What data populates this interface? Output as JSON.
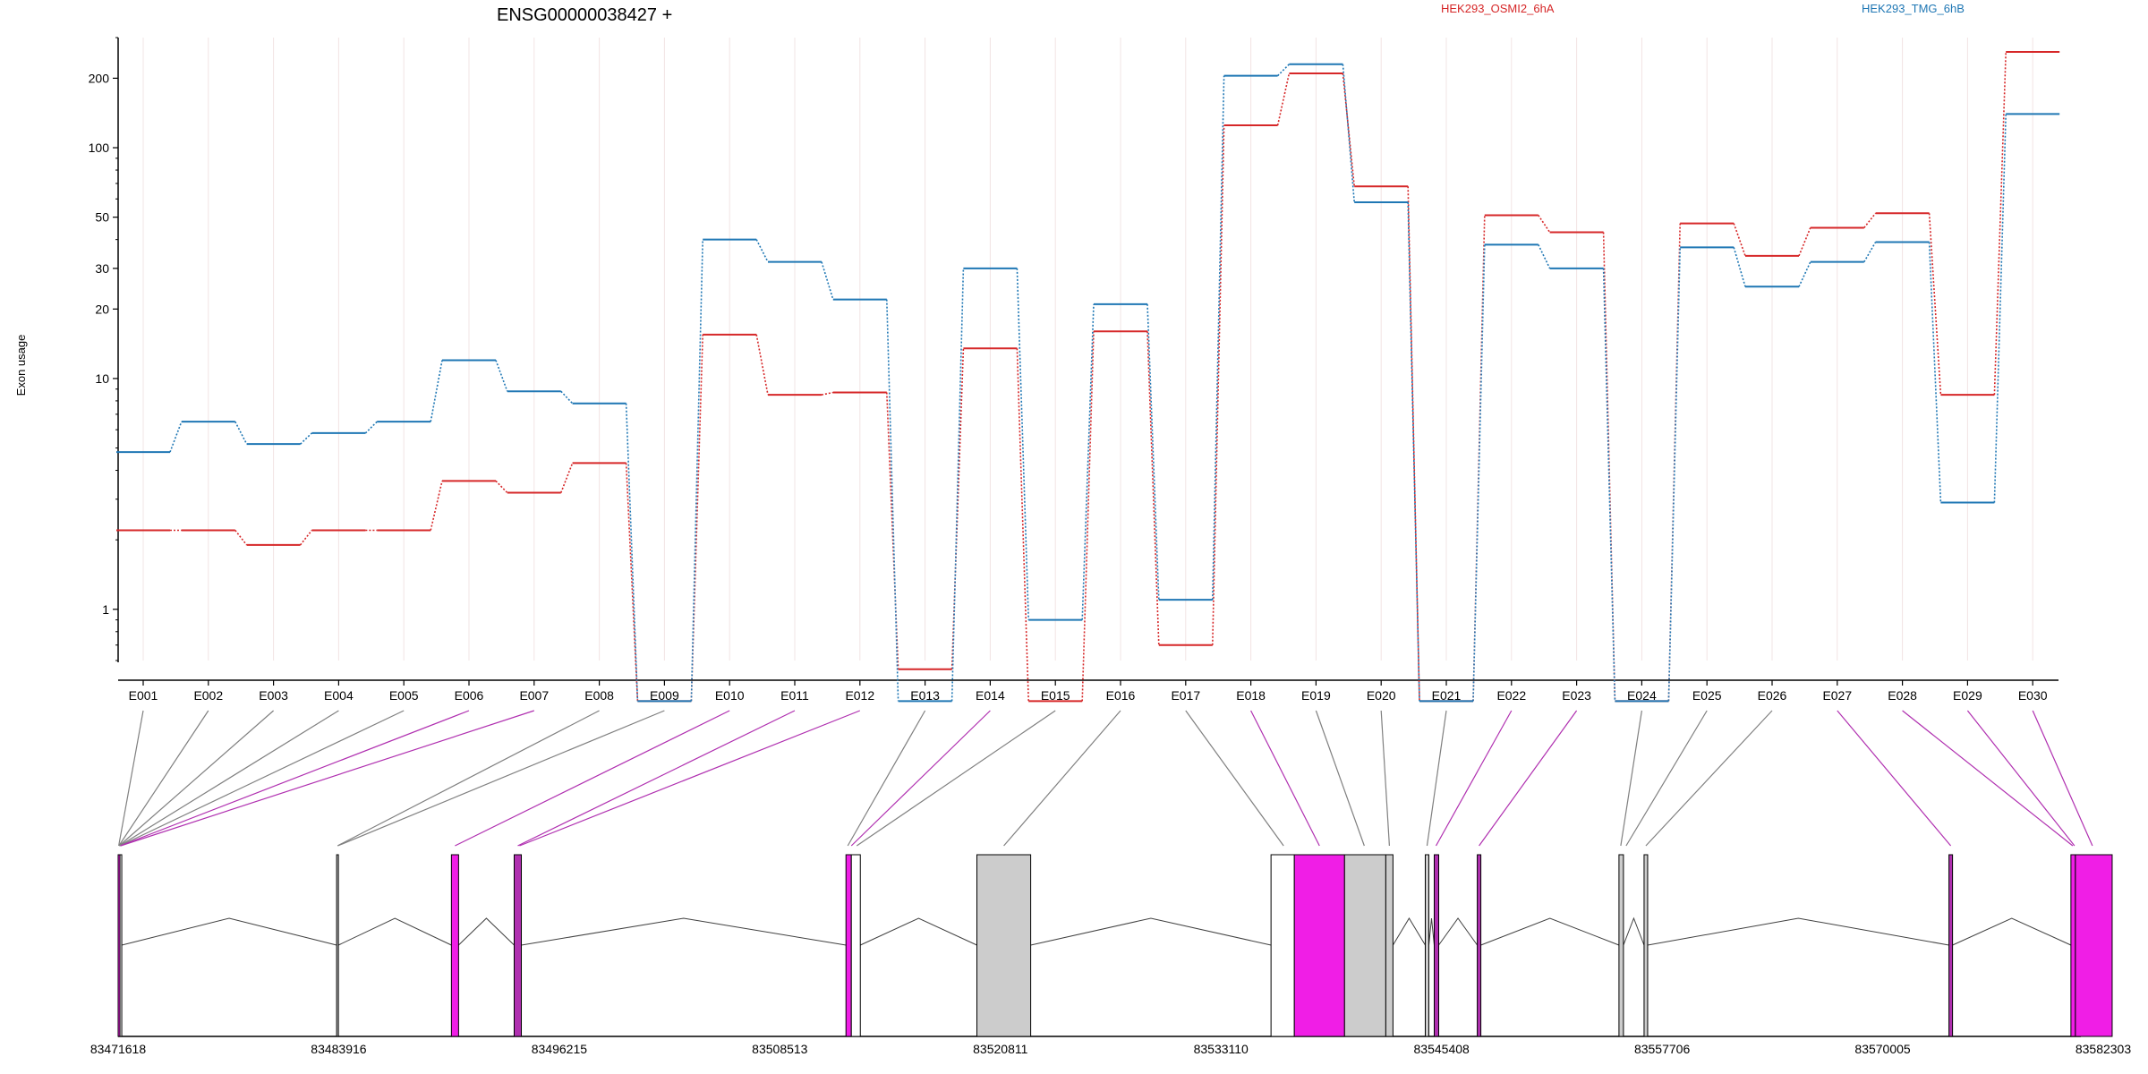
{
  "chart_data": {
    "type": "line",
    "title": "ENSG00000038427 +",
    "ylabel": "Exon usage",
    "xlabel": "",
    "yscale": "log",
    "ylim": [
      0.6,
      300
    ],
    "grid": true,
    "legend_placement": "top",
    "yticks": [
      1,
      10,
      20,
      30,
      50,
      100,
      200
    ],
    "categories": [
      "E001",
      "E002",
      "E003",
      "E004",
      "E005",
      "E006",
      "E007",
      "E008",
      "E009",
      "E010",
      "E011",
      "E012",
      "E013",
      "E014",
      "E015",
      "E016",
      "E017",
      "E018",
      "E019",
      "E020",
      "E021",
      "E022",
      "E023",
      "E024",
      "E025",
      "E026",
      "E027",
      "E028",
      "E029",
      "E030"
    ],
    "series": [
      {
        "name": "HEK293_OSMI2_6hA",
        "color": "#d62728",
        "values": [
          2.2,
          2.2,
          1.9,
          2.2,
          2.2,
          3.6,
          3.2,
          4.3,
          0.4,
          15.5,
          8.5,
          8.7,
          0.55,
          13.5,
          0.4,
          16.0,
          0.7,
          125,
          210,
          68,
          0.4,
          51,
          43,
          0.4,
          47,
          34,
          45,
          52,
          8.5,
          260
        ]
      },
      {
        "name": "HEK293_TMG_6hB",
        "color": "#1f77b4",
        "values": [
          4.8,
          6.5,
          5.2,
          5.8,
          6.5,
          12,
          8.8,
          7.8,
          0.4,
          40,
          32,
          22,
          0.4,
          30,
          0.9,
          21,
          1.1,
          205,
          230,
          58,
          0.4,
          38,
          30,
          0.4,
          37,
          25,
          32,
          39,
          2.9,
          140
        ]
      }
    ],
    "genome": {
      "coords": [
        "83471618",
        "83483916",
        "83496215",
        "83508513",
        "83520811",
        "83533110",
        "83545408",
        "83557706",
        "83570005",
        "83582303"
      ],
      "exon_regions": [
        {
          "start": 83471618,
          "end": 83471700,
          "color": "#f01ee6",
          "stroke": "#000000"
        },
        {
          "start": 83471720,
          "end": 83471800,
          "color": "#ffffff",
          "stroke": "#000000"
        },
        {
          "start": 83483800,
          "end": 83483900,
          "color": "#cccccc",
          "stroke": "#000000"
        },
        {
          "start": 83490200,
          "end": 83490600,
          "color": "#f01ee6",
          "stroke": "#000000"
        },
        {
          "start": 83493700,
          "end": 83494100,
          "color": "#b030b0",
          "stroke": "#000000"
        },
        {
          "start": 83512200,
          "end": 83512500,
          "color": "#f01ee6",
          "stroke": "#000000"
        },
        {
          "start": 83512500,
          "end": 83513000,
          "color": "#ffffff",
          "stroke": "#000000"
        },
        {
          "start": 83519500,
          "end": 83522500,
          "color": "#cccccc",
          "stroke": "#000000"
        },
        {
          "start": 83535900,
          "end": 83537200,
          "color": "#ffffff",
          "stroke": "#000000"
        },
        {
          "start": 83537200,
          "end": 83540000,
          "color": "#f01ee6",
          "stroke": "#000000"
        },
        {
          "start": 83540000,
          "end": 83542300,
          "color": "#cccccc",
          "stroke": "#000000"
        },
        {
          "start": 83542300,
          "end": 83542700,
          "color": "#cccccc",
          "stroke": "#000000"
        },
        {
          "start": 83544500,
          "end": 83544700,
          "color": "#cccccc",
          "stroke": "#000000"
        },
        {
          "start": 83545000,
          "end": 83545250,
          "color": "#b030b0",
          "stroke": "#000000"
        },
        {
          "start": 83547400,
          "end": 83547600,
          "color": "#b030b0",
          "stroke": "#000000"
        },
        {
          "start": 83555300,
          "end": 83555550,
          "color": "#cccccc",
          "stroke": "#000000"
        },
        {
          "start": 83556700,
          "end": 83556900,
          "color": "#cccccc",
          "stroke": "#000000"
        },
        {
          "start": 83573700,
          "end": 83573900,
          "color": "#b030b0",
          "stroke": "#000000"
        },
        {
          "start": 83580500,
          "end": 83580750,
          "color": "#f01ee6",
          "stroke": "#000000"
        },
        {
          "start": 83580750,
          "end": 83582800,
          "color": "#f01ee6",
          "stroke": "#000000"
        }
      ],
      "exon_mapping": [
        {
          "exon": "E001",
          "gpos": 83471650,
          "color": "#808080"
        },
        {
          "exon": "E002",
          "gpos": 83471660,
          "color": "#808080"
        },
        {
          "exon": "E003",
          "gpos": 83471680,
          "color": "#808080"
        },
        {
          "exon": "E004",
          "gpos": 83471700,
          "color": "#808080"
        },
        {
          "exon": "E005",
          "gpos": 83471720,
          "color": "#808080"
        },
        {
          "exon": "E006",
          "gpos": 83471740,
          "color": "#b030b0"
        },
        {
          "exon": "E007",
          "gpos": 83471760,
          "color": "#b030b0"
        },
        {
          "exon": "E008",
          "gpos": 83483850,
          "color": "#808080"
        },
        {
          "exon": "E009",
          "gpos": 83483870,
          "color": "#808080"
        },
        {
          "exon": "E010",
          "gpos": 83490400,
          "color": "#b030b0"
        },
        {
          "exon": "E011",
          "gpos": 83493900,
          "color": "#b030b0"
        },
        {
          "exon": "E012",
          "gpos": 83494000,
          "color": "#b030b0"
        },
        {
          "exon": "E013",
          "gpos": 83512300,
          "color": "#808080"
        },
        {
          "exon": "E014",
          "gpos": 83512500,
          "color": "#b030b0"
        },
        {
          "exon": "E015",
          "gpos": 83512800,
          "color": "#808080"
        },
        {
          "exon": "E016",
          "gpos": 83521000,
          "color": "#808080"
        },
        {
          "exon": "E017",
          "gpos": 83536600,
          "color": "#808080"
        },
        {
          "exon": "E018",
          "gpos": 83538600,
          "color": "#b030b0"
        },
        {
          "exon": "E019",
          "gpos": 83541100,
          "color": "#808080"
        },
        {
          "exon": "E020",
          "gpos": 83542500,
          "color": "#808080"
        },
        {
          "exon": "E021",
          "gpos": 83544600,
          "color": "#808080"
        },
        {
          "exon": "E022",
          "gpos": 83545100,
          "color": "#b030b0"
        },
        {
          "exon": "E023",
          "gpos": 83547500,
          "color": "#b030b0"
        },
        {
          "exon": "E024",
          "gpos": 83555400,
          "color": "#808080"
        },
        {
          "exon": "E025",
          "gpos": 83555700,
          "color": "#808080"
        },
        {
          "exon": "E026",
          "gpos": 83556800,
          "color": "#808080"
        },
        {
          "exon": "E027",
          "gpos": 83573800,
          "color": "#b030b0"
        },
        {
          "exon": "E028",
          "gpos": 83580600,
          "color": "#b030b0"
        },
        {
          "exon": "E029",
          "gpos": 83580700,
          "color": "#b030b0"
        },
        {
          "exon": "E030",
          "gpos": 83581700,
          "color": "#b030b0"
        }
      ]
    }
  }
}
